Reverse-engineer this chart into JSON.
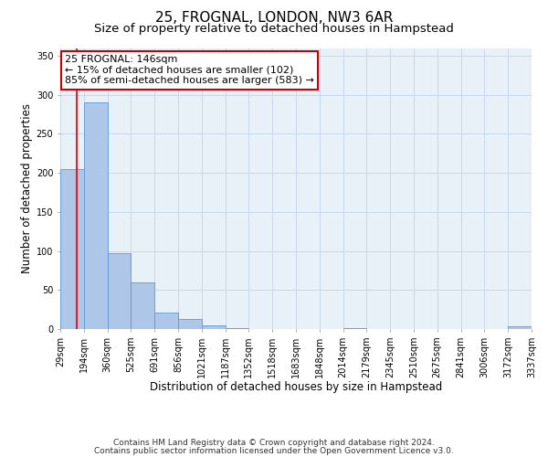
{
  "title": "25, FROGNAL, LONDON, NW3 6AR",
  "subtitle": "Size of property relative to detached houses in Hampstead",
  "xlabel": "Distribution of detached houses by size in Hampstead",
  "ylabel": "Number of detached properties",
  "bar_left_edges": [
    29,
    194,
    360,
    525,
    691,
    856,
    1021,
    1187,
    1352,
    1518,
    1683,
    1848,
    2014,
    2179,
    2345,
    2510,
    2675,
    2841,
    3006,
    3172
  ],
  "bar_widths": [
    165,
    166,
    165,
    166,
    165,
    165,
    166,
    165,
    166,
    165,
    165,
    166,
    165,
    166,
    165,
    165,
    166,
    165,
    166,
    165
  ],
  "bar_heights": [
    205,
    290,
    97,
    60,
    21,
    13,
    5,
    1,
    0,
    0,
    0,
    0,
    1,
    0,
    0,
    0,
    0,
    0,
    0,
    3
  ],
  "bar_color": "#aec6e8",
  "bar_edge_color": "#5b9bd5",
  "tick_labels": [
    "29sqm",
    "194sqm",
    "360sqm",
    "525sqm",
    "691sqm",
    "856sqm",
    "1021sqm",
    "1187sqm",
    "1352sqm",
    "1518sqm",
    "1683sqm",
    "1848sqm",
    "2014sqm",
    "2179sqm",
    "2345sqm",
    "2510sqm",
    "2675sqm",
    "2841sqm",
    "3006sqm",
    "3172sqm",
    "3337sqm"
  ],
  "ylim": [
    0,
    360
  ],
  "yticks": [
    0,
    50,
    100,
    150,
    200,
    250,
    300,
    350
  ],
  "red_line_x": 146,
  "annotation_title": "25 FROGNAL: 146sqm",
  "annotation_line1": "← 15% of detached houses are smaller (102)",
  "annotation_line2": "85% of semi-detached houses are larger (583) →",
  "annotation_box_color": "#ffffff",
  "annotation_box_edge_color": "#cc0000",
  "footer_line1": "Contains HM Land Registry data © Crown copyright and database right 2024.",
  "footer_line2": "Contains public sector information licensed under the Open Government Licence v3.0.",
  "background_color": "#ffffff",
  "plot_bg_color": "#e8f0f8",
  "grid_color": "#c8d8ea",
  "title_fontsize": 11,
  "subtitle_fontsize": 9.5,
  "axis_label_fontsize": 8.5,
  "tick_fontsize": 7,
  "annotation_fontsize": 8,
  "footer_fontsize": 6.5
}
